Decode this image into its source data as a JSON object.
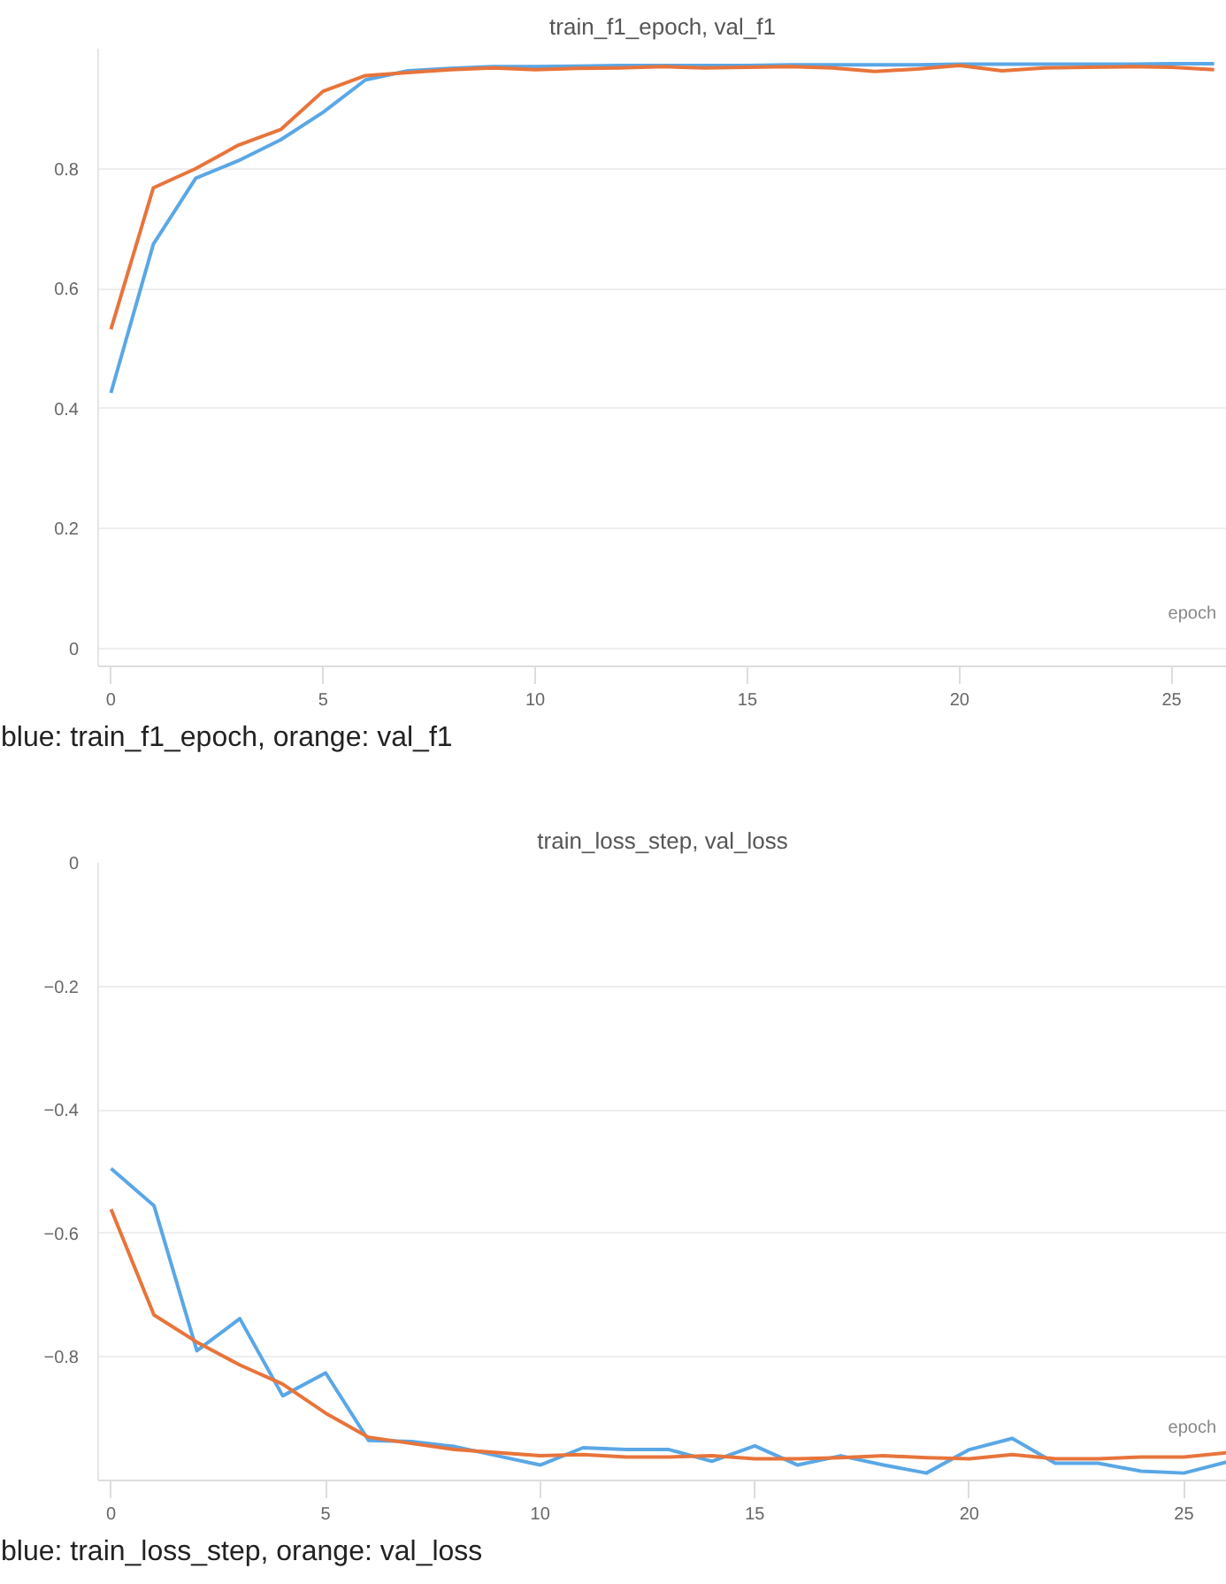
{
  "chart_data": [
    {
      "type": "line",
      "title": "train_f1_epoch, val_f1",
      "xlabel": "epoch",
      "x": [
        0,
        1,
        2,
        3,
        4,
        5,
        6,
        7,
        8,
        9,
        10,
        11,
        12,
        13,
        14,
        15,
        16,
        17,
        18,
        19,
        20,
        21,
        22,
        23,
        24,
        25,
        26
      ],
      "series": [
        {
          "color": "#5aa7e6",
          "values": [
            0.426,
            0.674,
            0.784,
            0.813,
            0.848,
            0.894,
            0.948,
            0.963,
            0.967,
            0.97,
            0.97,
            0.971,
            0.972,
            0.972,
            0.972,
            0.972,
            0.973,
            0.973,
            0.973,
            0.973,
            0.974,
            0.974,
            0.974,
            0.974,
            0.974,
            0.975,
            0.975
          ]
        },
        {
          "color": "#e8743b",
          "values": [
            0.532,
            0.768,
            0.8,
            0.839,
            0.865,
            0.929,
            0.955,
            0.96,
            0.965,
            0.968,
            0.965,
            0.967,
            0.968,
            0.97,
            0.968,
            0.969,
            0.97,
            0.968,
            0.962,
            0.966,
            0.972,
            0.963,
            0.968,
            0.969,
            0.97,
            0.969,
            0.965
          ]
        }
      ],
      "xlim": [
        -0.3,
        26.3
      ],
      "ylim": [
        -0.03,
        1.0
      ],
      "xticks": [
        0,
        5,
        10,
        15,
        20,
        25
      ],
      "yticks": [
        0,
        0.2,
        0.4,
        0.6,
        0.8
      ],
      "grid": "y",
      "marker": "none",
      "line_style": "solid",
      "annotations": [
        "blue: train_f1_epoch, orange: val_f1"
      ]
    },
    {
      "type": "line",
      "title": "train_loss_step, val_loss",
      "xlabel": "epoch",
      "x": [
        0,
        1,
        2,
        3,
        4,
        5,
        6,
        7,
        8,
        9,
        10,
        11,
        12,
        13,
        14,
        15,
        16,
        17,
        18,
        19,
        20,
        21,
        22,
        23,
        24,
        25,
        26
      ],
      "series": [
        {
          "color": "#5aa7e6",
          "values": [
            -0.495,
            -0.555,
            -0.79,
            -0.738,
            -0.863,
            -0.826,
            -0.935,
            -0.937,
            -0.945,
            -0.96,
            -0.975,
            -0.947,
            -0.95,
            -0.95,
            -0.969,
            -0.944,
            -0.975,
            -0.96,
            -0.975,
            -0.988,
            -0.95,
            -0.932,
            -0.972,
            -0.972,
            -0.985,
            -0.988,
            -0.97
          ]
        },
        {
          "color": "#e8743b",
          "values": [
            -0.561,
            -0.732,
            -0.776,
            -0.813,
            -0.844,
            -0.891,
            -0.93,
            -0.94,
            -0.95,
            -0.955,
            -0.96,
            -0.958,
            -0.962,
            -0.962,
            -0.96,
            -0.965,
            -0.965,
            -0.963,
            -0.96,
            -0.963,
            -0.965,
            -0.958,
            -0.965,
            -0.965,
            -0.962,
            -0.962,
            -0.955
          ]
        }
      ],
      "xlim": [
        -0.3,
        26.0
      ],
      "ylim": [
        -1.0,
        0
      ],
      "xticks": [
        0,
        5,
        10,
        15,
        20,
        25
      ],
      "yticks": [
        0,
        -0.2,
        -0.4,
        -0.6,
        -0.8
      ],
      "grid": "y",
      "marker": "none",
      "line_style": "solid",
      "annotations": [
        "blue: train_loss_step, orange: val_loss"
      ]
    }
  ]
}
